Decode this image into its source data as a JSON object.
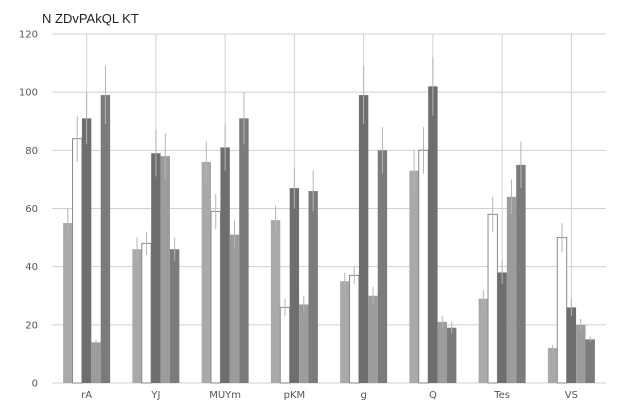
{
  "chart_data": {
    "type": "bar",
    "title": "N ZDvPAkQL KT",
    "xlabel": "",
    "ylabel": "",
    "categories": [
      "rA",
      "YJ",
      "MUYm",
      "pKM",
      "g",
      "Q",
      "Tes",
      "VS"
    ],
    "ylim": [
      0,
      120
    ],
    "yticks": [
      0,
      20,
      40,
      60,
      80,
      100,
      120
    ],
    "grid": true,
    "legend": "none",
    "series": [
      {
        "color": "#a9a9a9",
        "values": [
          55,
          46,
          76,
          56,
          35,
          73,
          29,
          12
        ],
        "errors": [
          5,
          4,
          7,
          5,
          3,
          7,
          3,
          1
        ]
      },
      {
        "color": "#ffffff",
        "values": [
          84,
          48,
          59,
          26,
          37,
          80,
          58,
          50
        ],
        "errors": [
          8,
          4,
          6,
          3,
          3,
          8,
          6,
          5
        ]
      },
      {
        "color": "#6e6e6e",
        "values": [
          91,
          79,
          81,
          67,
          99,
          102,
          38,
          26
        ],
        "errors": [
          9,
          8,
          8,
          7,
          10,
          10,
          4,
          3
        ]
      },
      {
        "color": "#9c9c9c",
        "values": [
          14,
          78,
          51,
          27,
          30,
          21,
          64,
          20
        ],
        "errors": [
          1,
          8,
          5,
          3,
          3,
          2,
          6,
          2
        ]
      },
      {
        "color": "#7b7b7b",
        "values": [
          99,
          46,
          91,
          66,
          80,
          19,
          75,
          15
        ],
        "errors": [
          10,
          4,
          9,
          7,
          8,
          2,
          8,
          1
        ]
      }
    ]
  }
}
